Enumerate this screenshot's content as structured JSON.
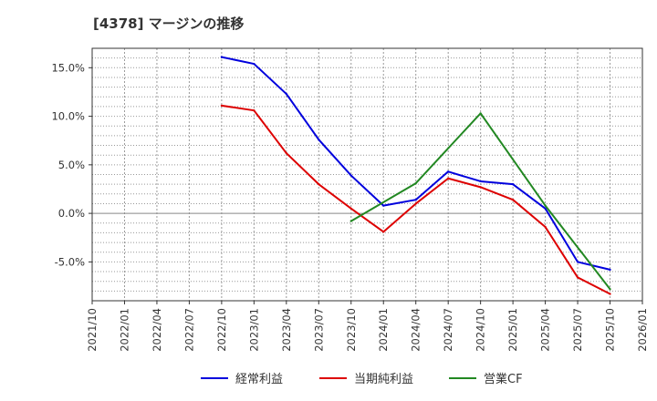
{
  "chart_data": {
    "type": "line",
    "title": "[4378]  マージンの推移",
    "xlabel": "",
    "ylabel": "",
    "ylim": [
      -9,
      17
    ],
    "yticks": [
      15,
      10,
      5,
      0,
      -5
    ],
    "ytick_labels": [
      "15.0%",
      "10.0%",
      "5.0%",
      "0.0%",
      "-5.0%"
    ],
    "xticks": [
      "2021/10",
      "2022/01",
      "2022/04",
      "2022/07",
      "2022/10",
      "2023/01",
      "2023/04",
      "2023/07",
      "2023/10",
      "2024/01",
      "2024/04",
      "2024/07",
      "2024/10",
      "2025/01",
      "2025/04",
      "2025/07",
      "2025/10",
      "2026/01"
    ],
    "grid": true,
    "legend_position": "bottom",
    "series": [
      {
        "name": "経常利益",
        "color": "#0000dd",
        "points": [
          {
            "x": "2022/10",
            "y": 16.1
          },
          {
            "x": "2023/01",
            "y": 15.4
          },
          {
            "x": "2023/04",
            "y": 12.3
          },
          {
            "x": "2023/07",
            "y": 7.6
          },
          {
            "x": "2023/10",
            "y": 3.9
          },
          {
            "x": "2024/01",
            "y": 0.8
          },
          {
            "x": "2024/04",
            "y": 1.4
          },
          {
            "x": "2024/07",
            "y": 4.3
          },
          {
            "x": "2024/10",
            "y": 3.3
          },
          {
            "x": "2025/01",
            "y": 3.0
          },
          {
            "x": "2025/04",
            "y": 0.5
          },
          {
            "x": "2025/07",
            "y": -5.0
          },
          {
            "x": "2025/10",
            "y": -5.8
          }
        ]
      },
      {
        "name": "当期純利益",
        "color": "#dd0000",
        "points": [
          {
            "x": "2022/10",
            "y": 11.1
          },
          {
            "x": "2023/01",
            "y": 10.6
          },
          {
            "x": "2023/04",
            "y": 6.2
          },
          {
            "x": "2023/07",
            "y": 3.0
          },
          {
            "x": "2023/10",
            "y": 0.5
          },
          {
            "x": "2024/01",
            "y": -1.9
          },
          {
            "x": "2024/04",
            "y": 1.0
          },
          {
            "x": "2024/07",
            "y": 3.6
          },
          {
            "x": "2024/10",
            "y": 2.7
          },
          {
            "x": "2025/01",
            "y": 1.4
          },
          {
            "x": "2025/04",
            "y": -1.4
          },
          {
            "x": "2025/07",
            "y": -6.6
          },
          {
            "x": "2025/10",
            "y": -8.3
          }
        ]
      },
      {
        "name": "営業CF",
        "color": "#228822",
        "points": [
          {
            "x": "2023/10",
            "y": -0.8
          },
          {
            "x": "2024/04",
            "y": 3.1
          },
          {
            "x": "2024/10",
            "y": 10.3
          },
          {
            "x": "2025/04",
            "y": 0.8
          },
          {
            "x": "2025/10",
            "y": -7.8
          }
        ]
      }
    ]
  }
}
